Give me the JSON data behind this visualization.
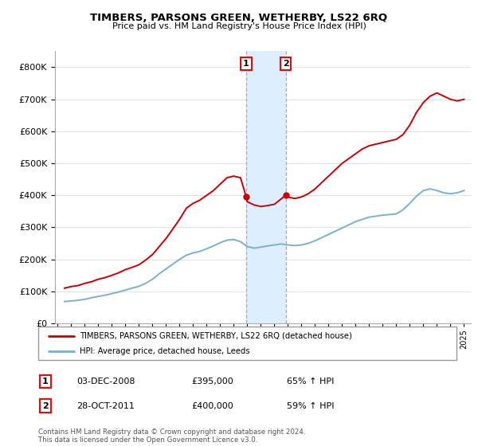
{
  "title": "TIMBERS, PARSONS GREEN, WETHERBY, LS22 6RQ",
  "subtitle": "Price paid vs. HM Land Registry's House Price Index (HPI)",
  "legend_line1": "TIMBERS, PARSONS GREEN, WETHERBY, LS22 6RQ (detached house)",
  "legend_line2": "HPI: Average price, detached house, Leeds",
  "red_color": "#cc0000",
  "blue_color": "#7ab0d4",
  "shaded_color": "#ddeeff",
  "annotation1_label": "1",
  "annotation1_date": "03-DEC-2008",
  "annotation1_price": "£395,000",
  "annotation1_hpi": "65% ↑ HPI",
  "annotation2_label": "2",
  "annotation2_date": "28-OCT-2011",
  "annotation2_price": "£400,000",
  "annotation2_hpi": "59% ↑ HPI",
  "footer1": "Contains HM Land Registry data © Crown copyright and database right 2024.",
  "footer2": "This data is licensed under the Open Government Licence v3.0.",
  "ylim": [
    0,
    850000
  ],
  "yticks": [
    0,
    100000,
    200000,
    300000,
    400000,
    500000,
    600000,
    700000,
    800000
  ],
  "xlim_start": 1994.8,
  "xlim_end": 2025.5,
  "red_data": [
    [
      1995.5,
      110000
    ],
    [
      1996.0,
      115000
    ],
    [
      1996.5,
      118000
    ],
    [
      1997.0,
      125000
    ],
    [
      1997.5,
      130000
    ],
    [
      1998.0,
      138000
    ],
    [
      1998.5,
      143000
    ],
    [
      1999.0,
      150000
    ],
    [
      1999.5,
      158000
    ],
    [
      2000.0,
      168000
    ],
    [
      2000.5,
      175000
    ],
    [
      2001.0,
      183000
    ],
    [
      2001.5,
      198000
    ],
    [
      2002.0,
      215000
    ],
    [
      2002.5,
      240000
    ],
    [
      2003.0,
      265000
    ],
    [
      2003.5,
      295000
    ],
    [
      2004.0,
      325000
    ],
    [
      2004.5,
      360000
    ],
    [
      2005.0,
      375000
    ],
    [
      2005.5,
      385000
    ],
    [
      2006.0,
      400000
    ],
    [
      2006.5,
      415000
    ],
    [
      2007.0,
      435000
    ],
    [
      2007.5,
      455000
    ],
    [
      2008.0,
      460000
    ],
    [
      2008.5,
      455000
    ],
    [
      2008.917,
      395000
    ],
    [
      2009.0,
      380000
    ],
    [
      2009.5,
      370000
    ],
    [
      2010.0,
      365000
    ],
    [
      2010.5,
      368000
    ],
    [
      2011.0,
      372000
    ],
    [
      2011.833,
      400000
    ],
    [
      2012.0,
      395000
    ],
    [
      2012.5,
      390000
    ],
    [
      2013.0,
      395000
    ],
    [
      2013.5,
      405000
    ],
    [
      2014.0,
      420000
    ],
    [
      2014.5,
      440000
    ],
    [
      2015.0,
      460000
    ],
    [
      2015.5,
      480000
    ],
    [
      2016.0,
      500000
    ],
    [
      2016.5,
      515000
    ],
    [
      2017.0,
      530000
    ],
    [
      2017.5,
      545000
    ],
    [
      2018.0,
      555000
    ],
    [
      2018.5,
      560000
    ],
    [
      2019.0,
      565000
    ],
    [
      2019.5,
      570000
    ],
    [
      2020.0,
      575000
    ],
    [
      2020.5,
      590000
    ],
    [
      2021.0,
      620000
    ],
    [
      2021.5,
      660000
    ],
    [
      2022.0,
      690000
    ],
    [
      2022.5,
      710000
    ],
    [
      2023.0,
      720000
    ],
    [
      2023.5,
      710000
    ],
    [
      2024.0,
      700000
    ],
    [
      2024.5,
      695000
    ],
    [
      2025.0,
      700000
    ]
  ],
  "blue_data": [
    [
      1995.5,
      68000
    ],
    [
      1996.0,
      70000
    ],
    [
      1996.5,
      72000
    ],
    [
      1997.0,
      75000
    ],
    [
      1997.5,
      80000
    ],
    [
      1998.0,
      84000
    ],
    [
      1998.5,
      88000
    ],
    [
      1999.0,
      93000
    ],
    [
      1999.5,
      98000
    ],
    [
      2000.0,
      104000
    ],
    [
      2000.5,
      110000
    ],
    [
      2001.0,
      116000
    ],
    [
      2001.5,
      125000
    ],
    [
      2002.0,
      138000
    ],
    [
      2002.5,
      155000
    ],
    [
      2003.0,
      170000
    ],
    [
      2003.5,
      185000
    ],
    [
      2004.0,
      200000
    ],
    [
      2004.5,
      213000
    ],
    [
      2005.0,
      220000
    ],
    [
      2005.5,
      225000
    ],
    [
      2006.0,
      233000
    ],
    [
      2006.5,
      242000
    ],
    [
      2007.0,
      252000
    ],
    [
      2007.5,
      260000
    ],
    [
      2008.0,
      262000
    ],
    [
      2008.5,
      255000
    ],
    [
      2009.0,
      240000
    ],
    [
      2009.5,
      235000
    ],
    [
      2010.0,
      238000
    ],
    [
      2010.5,
      242000
    ],
    [
      2011.0,
      245000
    ],
    [
      2011.5,
      248000
    ],
    [
      2012.0,
      245000
    ],
    [
      2012.5,
      243000
    ],
    [
      2013.0,
      245000
    ],
    [
      2013.5,
      250000
    ],
    [
      2014.0,
      258000
    ],
    [
      2014.5,
      268000
    ],
    [
      2015.0,
      278000
    ],
    [
      2015.5,
      288000
    ],
    [
      2016.0,
      298000
    ],
    [
      2016.5,
      308000
    ],
    [
      2017.0,
      318000
    ],
    [
      2017.5,
      325000
    ],
    [
      2018.0,
      332000
    ],
    [
      2018.5,
      335000
    ],
    [
      2019.0,
      338000
    ],
    [
      2019.5,
      340000
    ],
    [
      2020.0,
      342000
    ],
    [
      2020.5,
      355000
    ],
    [
      2021.0,
      375000
    ],
    [
      2021.5,
      398000
    ],
    [
      2022.0,
      415000
    ],
    [
      2022.5,
      420000
    ],
    [
      2023.0,
      415000
    ],
    [
      2023.5,
      408000
    ],
    [
      2024.0,
      405000
    ],
    [
      2024.5,
      408000
    ],
    [
      2025.0,
      415000
    ]
  ],
  "sale1_x": 2008.917,
  "sale1_y": 395000,
  "sale2_x": 2011.833,
  "sale2_y": 400000,
  "shade_x1": 2008.917,
  "shade_x2": 2011.833
}
